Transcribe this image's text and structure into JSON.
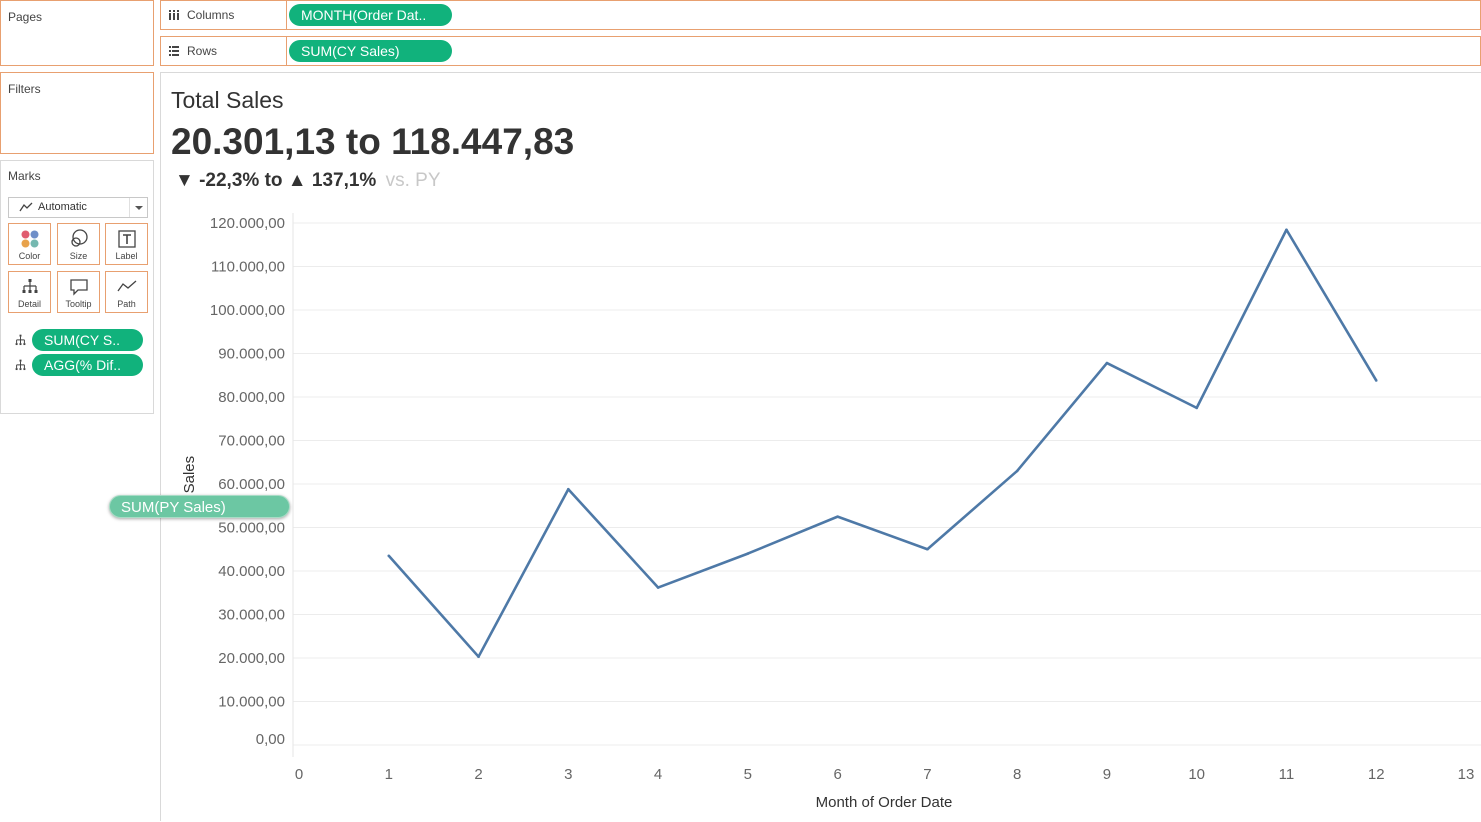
{
  "cards": {
    "pages_title": "Pages",
    "filters_title": "Filters",
    "marks_title": "Marks"
  },
  "marks": {
    "mark_type": "Automatic",
    "buttons": [
      {
        "label": "Color",
        "icon": "color-icon"
      },
      {
        "label": "Size",
        "icon": "size-icon"
      },
      {
        "label": "Label",
        "icon": "label-icon"
      },
      {
        "label": "Detail",
        "icon": "detail-icon"
      },
      {
        "label": "Tooltip",
        "icon": "tooltip-icon"
      },
      {
        "label": "Path",
        "icon": "path-icon"
      }
    ],
    "fields": [
      {
        "label": "SUM(CY S..",
        "icon": "detail-icon"
      },
      {
        "label": "AGG(% Dif..",
        "icon": "detail-icon"
      }
    ]
  },
  "shelves": {
    "columns_label": "Columns",
    "columns_pill": "MONTH(Order Dat..",
    "rows_label": "Rows",
    "rows_pill": "SUM(CY Sales)"
  },
  "view": {
    "title": "Total Sales",
    "range": "20.301,13 to 118.447,83",
    "pct_low": "-22,3%",
    "pct_mid": "to",
    "pct_high": "137,1%",
    "vs_text": "vs. PY"
  },
  "drag_pill": "SUM(PY Sales)",
  "colors": {
    "pill": "#11b27c",
    "line": "#4e79a7",
    "card_border": "#e8a070"
  },
  "chart_data": {
    "type": "line",
    "xlabel": "Month of Order Date",
    "ylabel": "CY Sales",
    "xlim": [
      0,
      13
    ],
    "ylim": [
      0,
      120000
    ],
    "x_ticks": [
      "0",
      "1",
      "2",
      "3",
      "4",
      "5",
      "6",
      "7",
      "8",
      "9",
      "10",
      "11",
      "12",
      "13"
    ],
    "y_ticks": [
      "0,00",
      "10.000,00",
      "20.000,00",
      "30.000,00",
      "40.000,00",
      "50.000,00",
      "60.000,00",
      "70.000,00",
      "80.000,00",
      "90.000,00",
      "100.000,00",
      "110.000,00",
      "120.000,00"
    ],
    "grid": true,
    "x": [
      1,
      2,
      3,
      4,
      5,
      6,
      7,
      8,
      9,
      10,
      11,
      12
    ],
    "values": [
      43500,
      20301.13,
      58800,
      36200,
      44000,
      52500,
      45000,
      63000,
      87800,
      77500,
      118447.83,
      83800
    ]
  }
}
